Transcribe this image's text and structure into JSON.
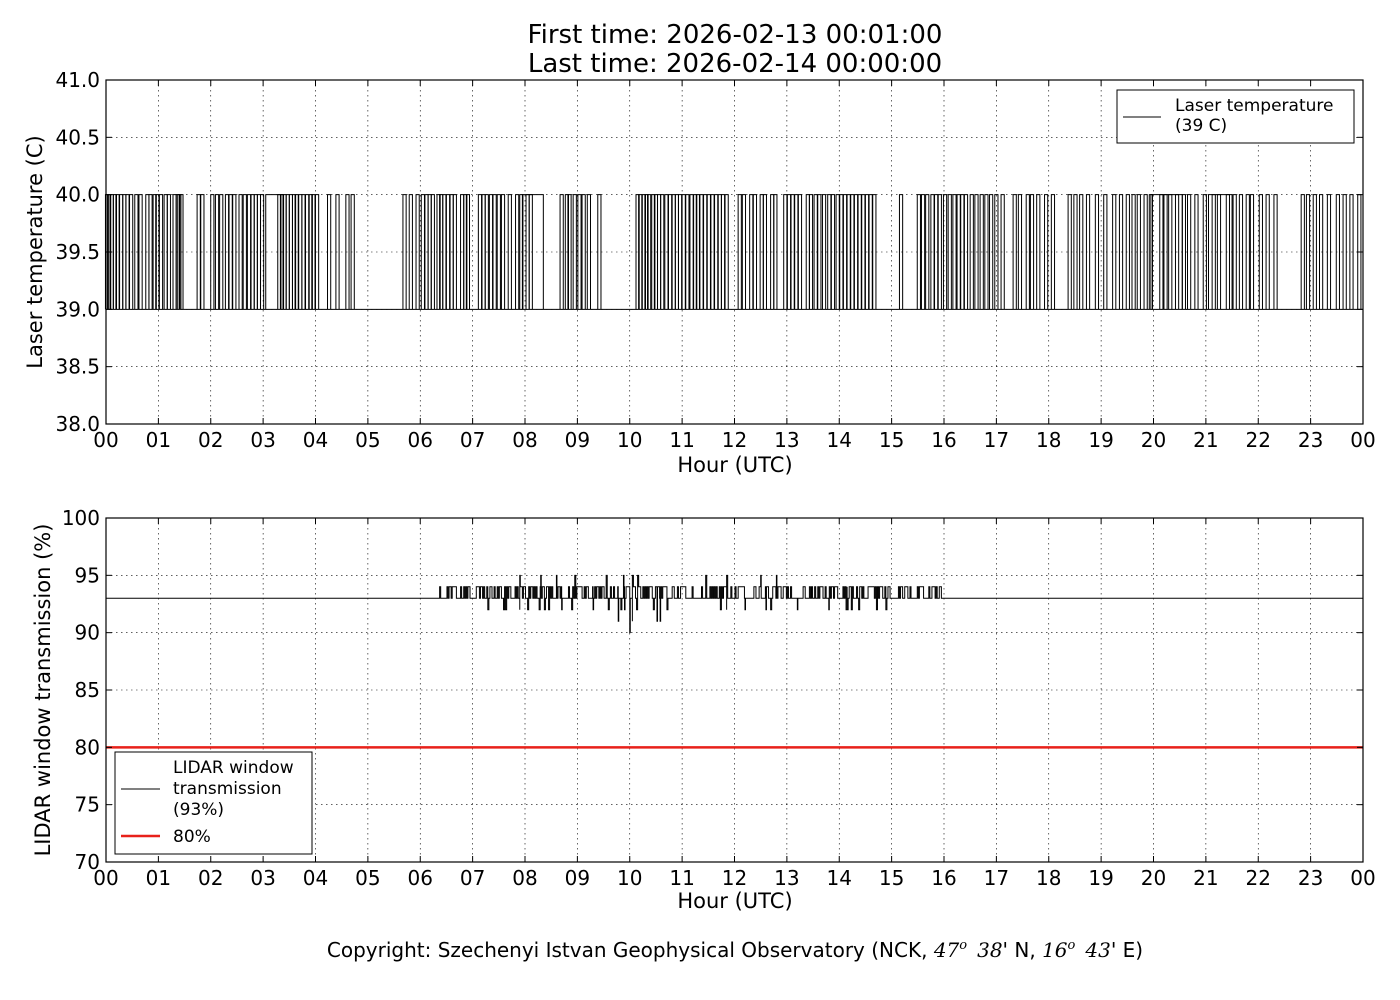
{
  "figure": {
    "title_line1": "First time: 2026-02-13 00:01:00",
    "title_line2": "Last time: 2026-02-14 00:00:00",
    "copyright": {
      "prefix": "Copyright: Szechenyi Istvan Geophysical Observatory (NCK, ",
      "lat_deg": "47",
      "lat_min": "38",
      "lat_suffix": "' N, ",
      "lon_deg": "16",
      "lon_min": "43",
      "lon_suffix": "' E)",
      "deg_sup": "o"
    }
  },
  "chart_data": [
    {
      "type": "line",
      "xlabel": "Hour (UTC)",
      "ylabel": "Laser temperature (C)",
      "xlim": [
        0,
        24
      ],
      "ylim": [
        38.0,
        41.0
      ],
      "x_tick_labels": [
        "00",
        "01",
        "02",
        "03",
        "04",
        "05",
        "06",
        "07",
        "08",
        "09",
        "10",
        "11",
        "12",
        "13",
        "14",
        "15",
        "16",
        "17",
        "18",
        "19",
        "20",
        "21",
        "22",
        "23",
        "00"
      ],
      "y_tick_labels": [
        "38.0",
        "38.5",
        "39.0",
        "39.5",
        "40.0",
        "40.5",
        "41.0"
      ],
      "grid": true,
      "legend_position": "top-right",
      "series": [
        {
          "name": "Laser temperature\n(39 C)",
          "legend_line1": "Laser temperature",
          "legend_line2": "(39 C)",
          "color": "#000000",
          "baseline": 39.0,
          "spike": 40.0,
          "description": "step signal switching between 39.0 and 40.0 C throughout the day",
          "spike_times": [
            0.02,
            0.06,
            0.11,
            0.17,
            0.22,
            0.29,
            0.35,
            0.41,
            0.48,
            0.58,
            0.66,
            0.79,
            0.85,
            0.93,
            0.98,
            1.05,
            1.14,
            1.2,
            1.31,
            1.37,
            1.4,
            1.44,
            1.77,
            1.84,
            2.03,
            2.12,
            2.2,
            2.31,
            2.38,
            2.45,
            2.57,
            2.65,
            2.73,
            2.8,
            2.86,
            2.92,
            2.98,
            3.31,
            3.36,
            3.41,
            3.47,
            3.53,
            3.59,
            3.64,
            3.71,
            3.77,
            3.84,
            3.91,
            3.96,
            4.03,
            4.26,
            4.42,
            4.61,
            4.71,
            5.7,
            5.82,
            5.95,
            6.05,
            6.12,
            6.18,
            6.24,
            6.35,
            6.4,
            6.46,
            6.53,
            6.6,
            6.66,
            6.8,
            6.86,
            6.91,
            7.14,
            7.21,
            7.27,
            7.35,
            7.42,
            7.5,
            7.58,
            7.71,
            7.85,
            7.93,
            8.05,
            8.11,
            8.7,
            8.8,
            8.85,
            8.95,
            9.04,
            9.12,
            9.22,
            9.42,
            10.15,
            10.2,
            10.27,
            10.32,
            10.37,
            10.45,
            10.5,
            10.56,
            10.62,
            10.7,
            10.77,
            10.84,
            10.9,
            10.96,
            11.03,
            11.1,
            11.18,
            11.25,
            11.3,
            11.37,
            11.44,
            11.51,
            11.58,
            11.65,
            11.72,
            11.78,
            11.85,
            12.1,
            12.18,
            12.32,
            12.39,
            12.52,
            12.58,
            12.72,
            12.78,
            12.97,
            13.04,
            13.11,
            13.18,
            13.25,
            13.4,
            13.46,
            13.55,
            13.62,
            13.71,
            13.81,
            13.88,
            13.97,
            14.04,
            14.11,
            14.18,
            14.25,
            14.32,
            14.39,
            14.46,
            14.53,
            14.6,
            14.67,
            15.18,
            15.52,
            15.6,
            15.68,
            15.78,
            15.85,
            15.92,
            16.02,
            16.11,
            16.2,
            16.28,
            16.35,
            16.42,
            16.53,
            16.62,
            16.72,
            16.81,
            16.9,
            17.0,
            17.12,
            17.35,
            17.45,
            17.6,
            17.68,
            17.8,
            17.95,
            18.08,
            18.4,
            18.51,
            18.62,
            18.75,
            18.92,
            19.08,
            19.25,
            19.38,
            19.51,
            19.62,
            19.72,
            19.85,
            19.95,
            20.15,
            20.23,
            20.32,
            20.45,
            20.58,
            20.68,
            20.82,
            20.98,
            21.15,
            21.25,
            21.42,
            21.55,
            21.67,
            21.8,
            21.88,
            22.05,
            22.18,
            22.33,
            22.85,
            22.95,
            23.08,
            23.2,
            23.35,
            23.52,
            23.65,
            23.78,
            23.93
          ],
          "plateaus": [
            [
              3.05,
              3.38
            ],
            [
              7.95,
              8.35
            ],
            [
              19.95,
              20.55
            ],
            [
              21.05,
              21.5
            ]
          ]
        }
      ]
    },
    {
      "type": "line",
      "xlabel": "Hour (UTC)",
      "ylabel": "LIDAR window transmission (%)",
      "xlim": [
        0,
        24
      ],
      "ylim": [
        70,
        100
      ],
      "x_tick_labels": [
        "00",
        "01",
        "02",
        "03",
        "04",
        "05",
        "06",
        "07",
        "08",
        "09",
        "10",
        "11",
        "12",
        "13",
        "14",
        "15",
        "16",
        "17",
        "18",
        "19",
        "20",
        "21",
        "22",
        "23",
        "00"
      ],
      "y_tick_labels": [
        "70",
        "75",
        "80",
        "85",
        "90",
        "95",
        "100"
      ],
      "grid": true,
      "legend_position": "bottom-left",
      "series": [
        {
          "name": "LIDAR window\ntransmission\n(93%)",
          "legend_line1": "LIDAR window",
          "legend_line2": "transmission",
          "legend_line3": "(93%)",
          "color": "#000000",
          "baseline": 93,
          "noisy_interval": [
            6.35,
            15.95
          ],
          "description": "mostly 93% with fluctuations between 90 and 95% from about 06:20 to 16:00 UTC",
          "dips": [
            [
              7.9,
              92
            ],
            [
              8.7,
              92
            ],
            [
              9.3,
              92
            ],
            [
              9.78,
              91
            ],
            [
              9.9,
              92
            ],
            [
              10.0,
              90
            ],
            [
              10.05,
              91
            ],
            [
              10.52,
              91
            ],
            [
              10.58,
              91
            ],
            [
              12.2,
              92
            ],
            [
              12.6,
              92
            ],
            [
              13.2,
              92
            ],
            [
              13.8,
              92
            ],
            [
              14.15,
              92
            ]
          ],
          "peaks": [
            [
              7.9,
              95
            ],
            [
              8.3,
              95
            ],
            [
              8.6,
              95
            ],
            [
              8.95,
              95
            ],
            [
              9.55,
              95
            ],
            [
              9.88,
              95
            ],
            [
              10.05,
              95
            ],
            [
              10.15,
              95
            ],
            [
              11.45,
              95
            ],
            [
              11.85,
              95
            ],
            [
              12.5,
              95
            ],
            [
              12.8,
              95
            ]
          ]
        },
        {
          "name": "80%",
          "legend_label": "80%",
          "color": "#e8211a",
          "value": 80
        }
      ]
    }
  ]
}
